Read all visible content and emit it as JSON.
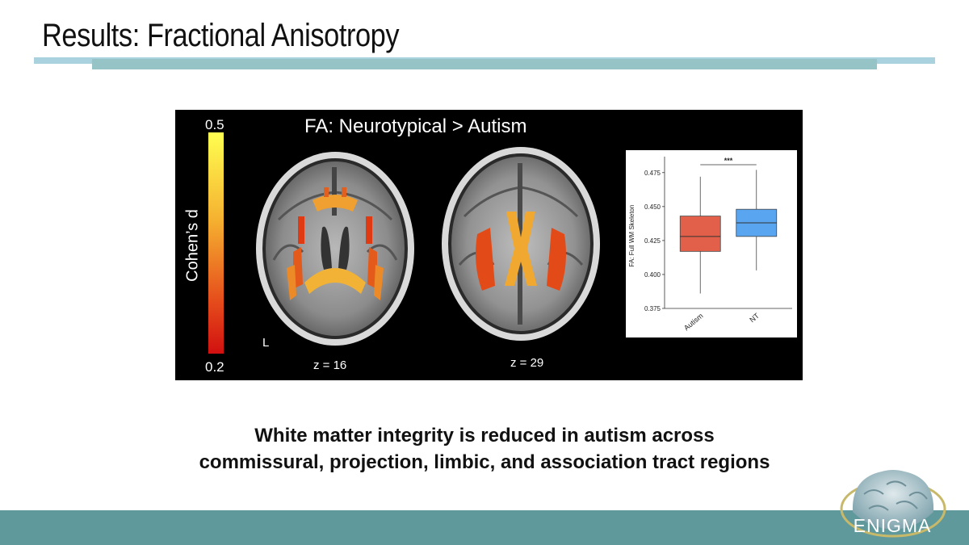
{
  "slide": {
    "title": "Results: Fractional Anisotropy",
    "caption_line1": "White matter integrity is reduced in autism across",
    "caption_line2": "commissural, projection, limbic, and association tract regions"
  },
  "figure": {
    "title": "FA: Neurotypical > Autism",
    "colorbar": {
      "max": "0.5",
      "min": "0.2",
      "label": "Cohen’s d"
    },
    "orientation_label": "L",
    "slices": [
      {
        "label": "z = 16"
      },
      {
        "label": "z = 29"
      }
    ]
  },
  "chart_data": {
    "type": "boxplot",
    "ylabel": "FA: Full WM Skeleton",
    "categories": [
      "Autism",
      "NT"
    ],
    "yticks": [
      0.375,
      0.4,
      0.425,
      0.45,
      0.475
    ],
    "ylim": [
      0.375,
      0.482
    ],
    "boxes": [
      {
        "category": "Autism",
        "whisker_low": 0.386,
        "q1": 0.417,
        "median": 0.428,
        "q3": 0.443,
        "whisker_high": 0.472,
        "color": "#e2604a"
      },
      {
        "category": "NT",
        "whisker_low": 0.403,
        "q1": 0.428,
        "median": 0.438,
        "q3": 0.448,
        "whisker_high": 0.477,
        "color": "#5aa5f0"
      }
    ],
    "significance": "***"
  },
  "logo": {
    "text": "ENIGMA"
  }
}
